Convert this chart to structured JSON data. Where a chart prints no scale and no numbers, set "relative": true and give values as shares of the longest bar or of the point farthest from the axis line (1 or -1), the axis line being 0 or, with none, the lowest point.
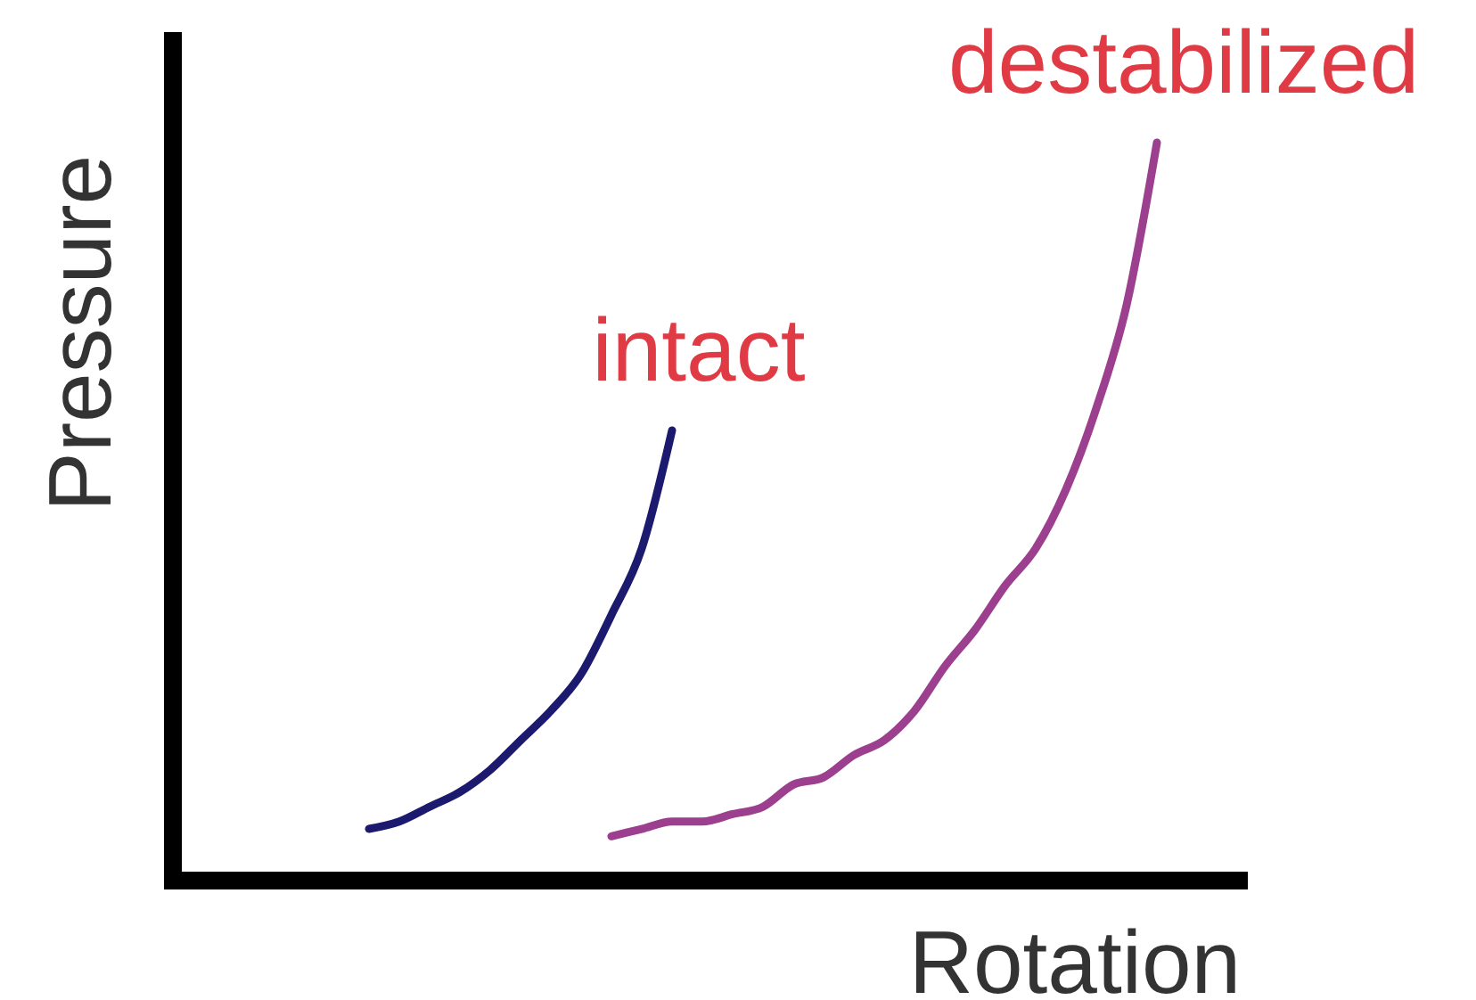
{
  "chart_data": {
    "type": "line",
    "xlabel": "Rotation",
    "ylabel": "Pressure",
    "relative": true,
    "categories": [
      null,
      null,
      null,
      null,
      null,
      null,
      null,
      null,
      null,
      null,
      null,
      null,
      null,
      null,
      null,
      null,
      null,
      null,
      null,
      null,
      null,
      null,
      null,
      null,
      null,
      null,
      null,
      null,
      null,
      null,
      null,
      null,
      null,
      null,
      null
    ],
    "series": [
      {
        "name": "intact",
        "color": "#1c1a6e",
        "values": [
          null,
          null,
          null,
          null,
          null,
          null,
          0.07,
          0.08,
          0.1,
          0.12,
          0.15,
          0.19,
          0.23,
          0.28,
          0.36,
          0.45,
          0.61,
          null,
          null,
          null,
          null,
          null,
          null,
          null,
          null,
          null,
          null,
          null,
          null,
          null,
          null,
          null,
          null,
          null,
          null
        ]
      },
      {
        "name": "destabilized",
        "color": "#9b3f8e",
        "values": [
          null,
          null,
          null,
          null,
          null,
          null,
          null,
          null,
          null,
          null,
          null,
          null,
          null,
          null,
          0.06,
          0.07,
          0.08,
          0.08,
          0.09,
          0.1,
          0.13,
          0.14,
          0.17,
          0.19,
          0.23,
          0.29,
          0.34,
          0.4,
          0.45,
          0.53,
          0.64,
          0.78,
          1,
          null,
          null
        ]
      }
    ]
  }
}
